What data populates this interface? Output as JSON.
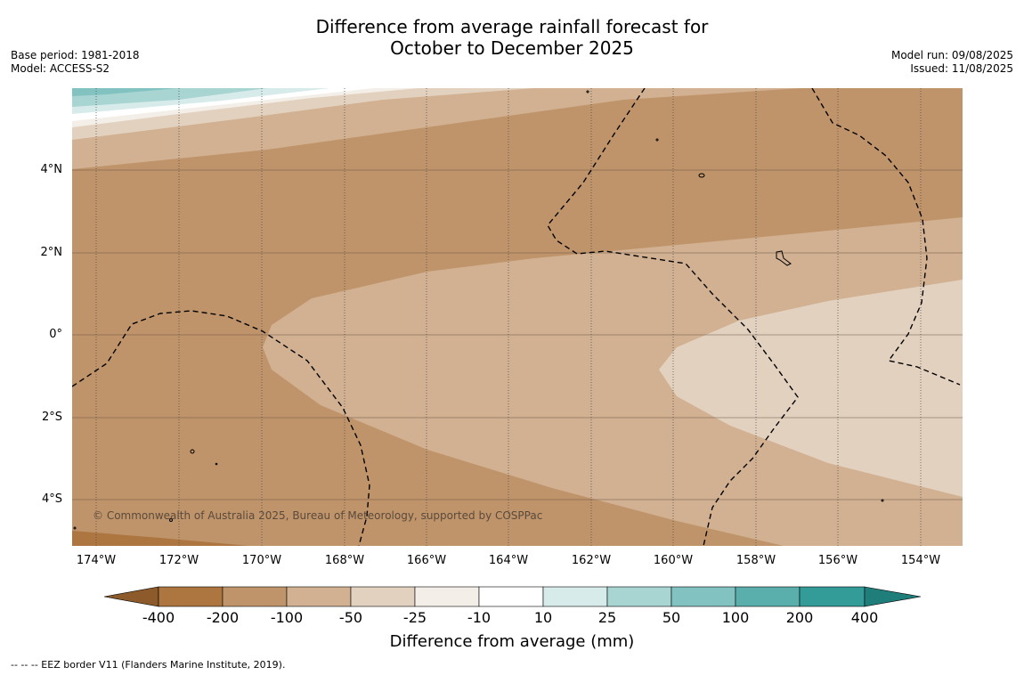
{
  "title_line1": "Difference from average rainfall forecast for",
  "title_line2": "October to December 2025",
  "base_period": "Base period: 1981-2018",
  "model": "Model: ACCESS-S2",
  "model_run": "Model run: 09/08/2025",
  "issued": "Issued: 11/08/2025",
  "copyright": "© Commonwealth of Australia 2025, Bureau of Meteorology, supported by COSPPac",
  "lat_labels": [
    "4°N",
    "2°N",
    "0°",
    "2°S",
    "4°S"
  ],
  "lon_labels": [
    "174°W",
    "172°W",
    "170°W",
    "168°W",
    "166°W",
    "164°W",
    "162°W",
    "160°W",
    "158°W",
    "156°W",
    "154°W"
  ],
  "colorbar": {
    "ticks": [
      "-400",
      "-200",
      "-100",
      "-50",
      "-25",
      "-10",
      "10",
      "25",
      "50",
      "100",
      "200",
      "400"
    ],
    "colors": [
      "#8c5a2b",
      "#ad7640",
      "#c0946b",
      "#d1b192",
      "#e3d1c0",
      "#f4eee8",
      "#ffffff",
      "#d6ebea",
      "#a8d4d2",
      "#82c3c1",
      "#5aaeac",
      "#339b98",
      "#1f7d7a"
    ],
    "label": "Difference from average (mm)"
  },
  "footnote": "--  --  -- EEZ border V11 (Flanders Marine Institute, 2019)."
}
